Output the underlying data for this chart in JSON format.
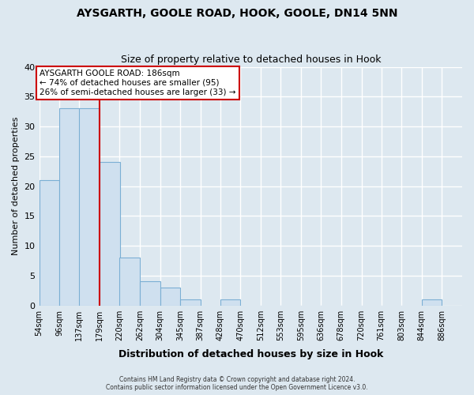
{
  "title": "AYSGARTH, GOOLE ROAD, HOOK, GOOLE, DN14 5NN",
  "subtitle": "Size of property relative to detached houses in Hook",
  "xlabel": "Distribution of detached houses by size in Hook",
  "ylabel": "Number of detached properties",
  "bins": [
    54,
    96,
    137,
    179,
    220,
    262,
    304,
    345,
    387,
    428,
    470,
    512,
    553,
    595,
    636,
    678,
    720,
    761,
    803,
    844,
    886
  ],
  "bin_labels": [
    "54sqm",
    "96sqm",
    "137sqm",
    "179sqm",
    "220sqm",
    "262sqm",
    "304sqm",
    "345sqm",
    "387sqm",
    "428sqm",
    "470sqm",
    "512sqm",
    "553sqm",
    "595sqm",
    "636sqm",
    "678sqm",
    "720sqm",
    "761sqm",
    "803sqm",
    "844sqm",
    "886sqm"
  ],
  "counts": [
    21,
    33,
    33,
    24,
    8,
    4,
    3,
    1,
    0,
    1,
    0,
    0,
    0,
    0,
    0,
    0,
    0,
    0,
    0,
    1
  ],
  "bar_color": "#cfe0ef",
  "bar_edge_color": "#7bafd4",
  "marker_line_color": "#cc0000",
  "ylim": [
    0,
    40
  ],
  "yticks": [
    0,
    5,
    10,
    15,
    20,
    25,
    30,
    35,
    40
  ],
  "annotation_title": "AYSGARTH GOOLE ROAD: 186sqm",
  "annotation_line1": "← 74% of detached houses are smaller (95)",
  "annotation_line2": "26% of semi-detached houses are larger (33) →",
  "annotation_box_color": "#ffffff",
  "annotation_box_edge_color": "#cc0000",
  "footer1": "Contains HM Land Registry data © Crown copyright and database right 2024.",
  "footer2": "Contains public sector information licensed under the Open Government Licence v3.0.",
  "background_color": "#dde8f0",
  "grid_color": "#ffffff",
  "fig_width": 6.0,
  "fig_height": 5.0
}
